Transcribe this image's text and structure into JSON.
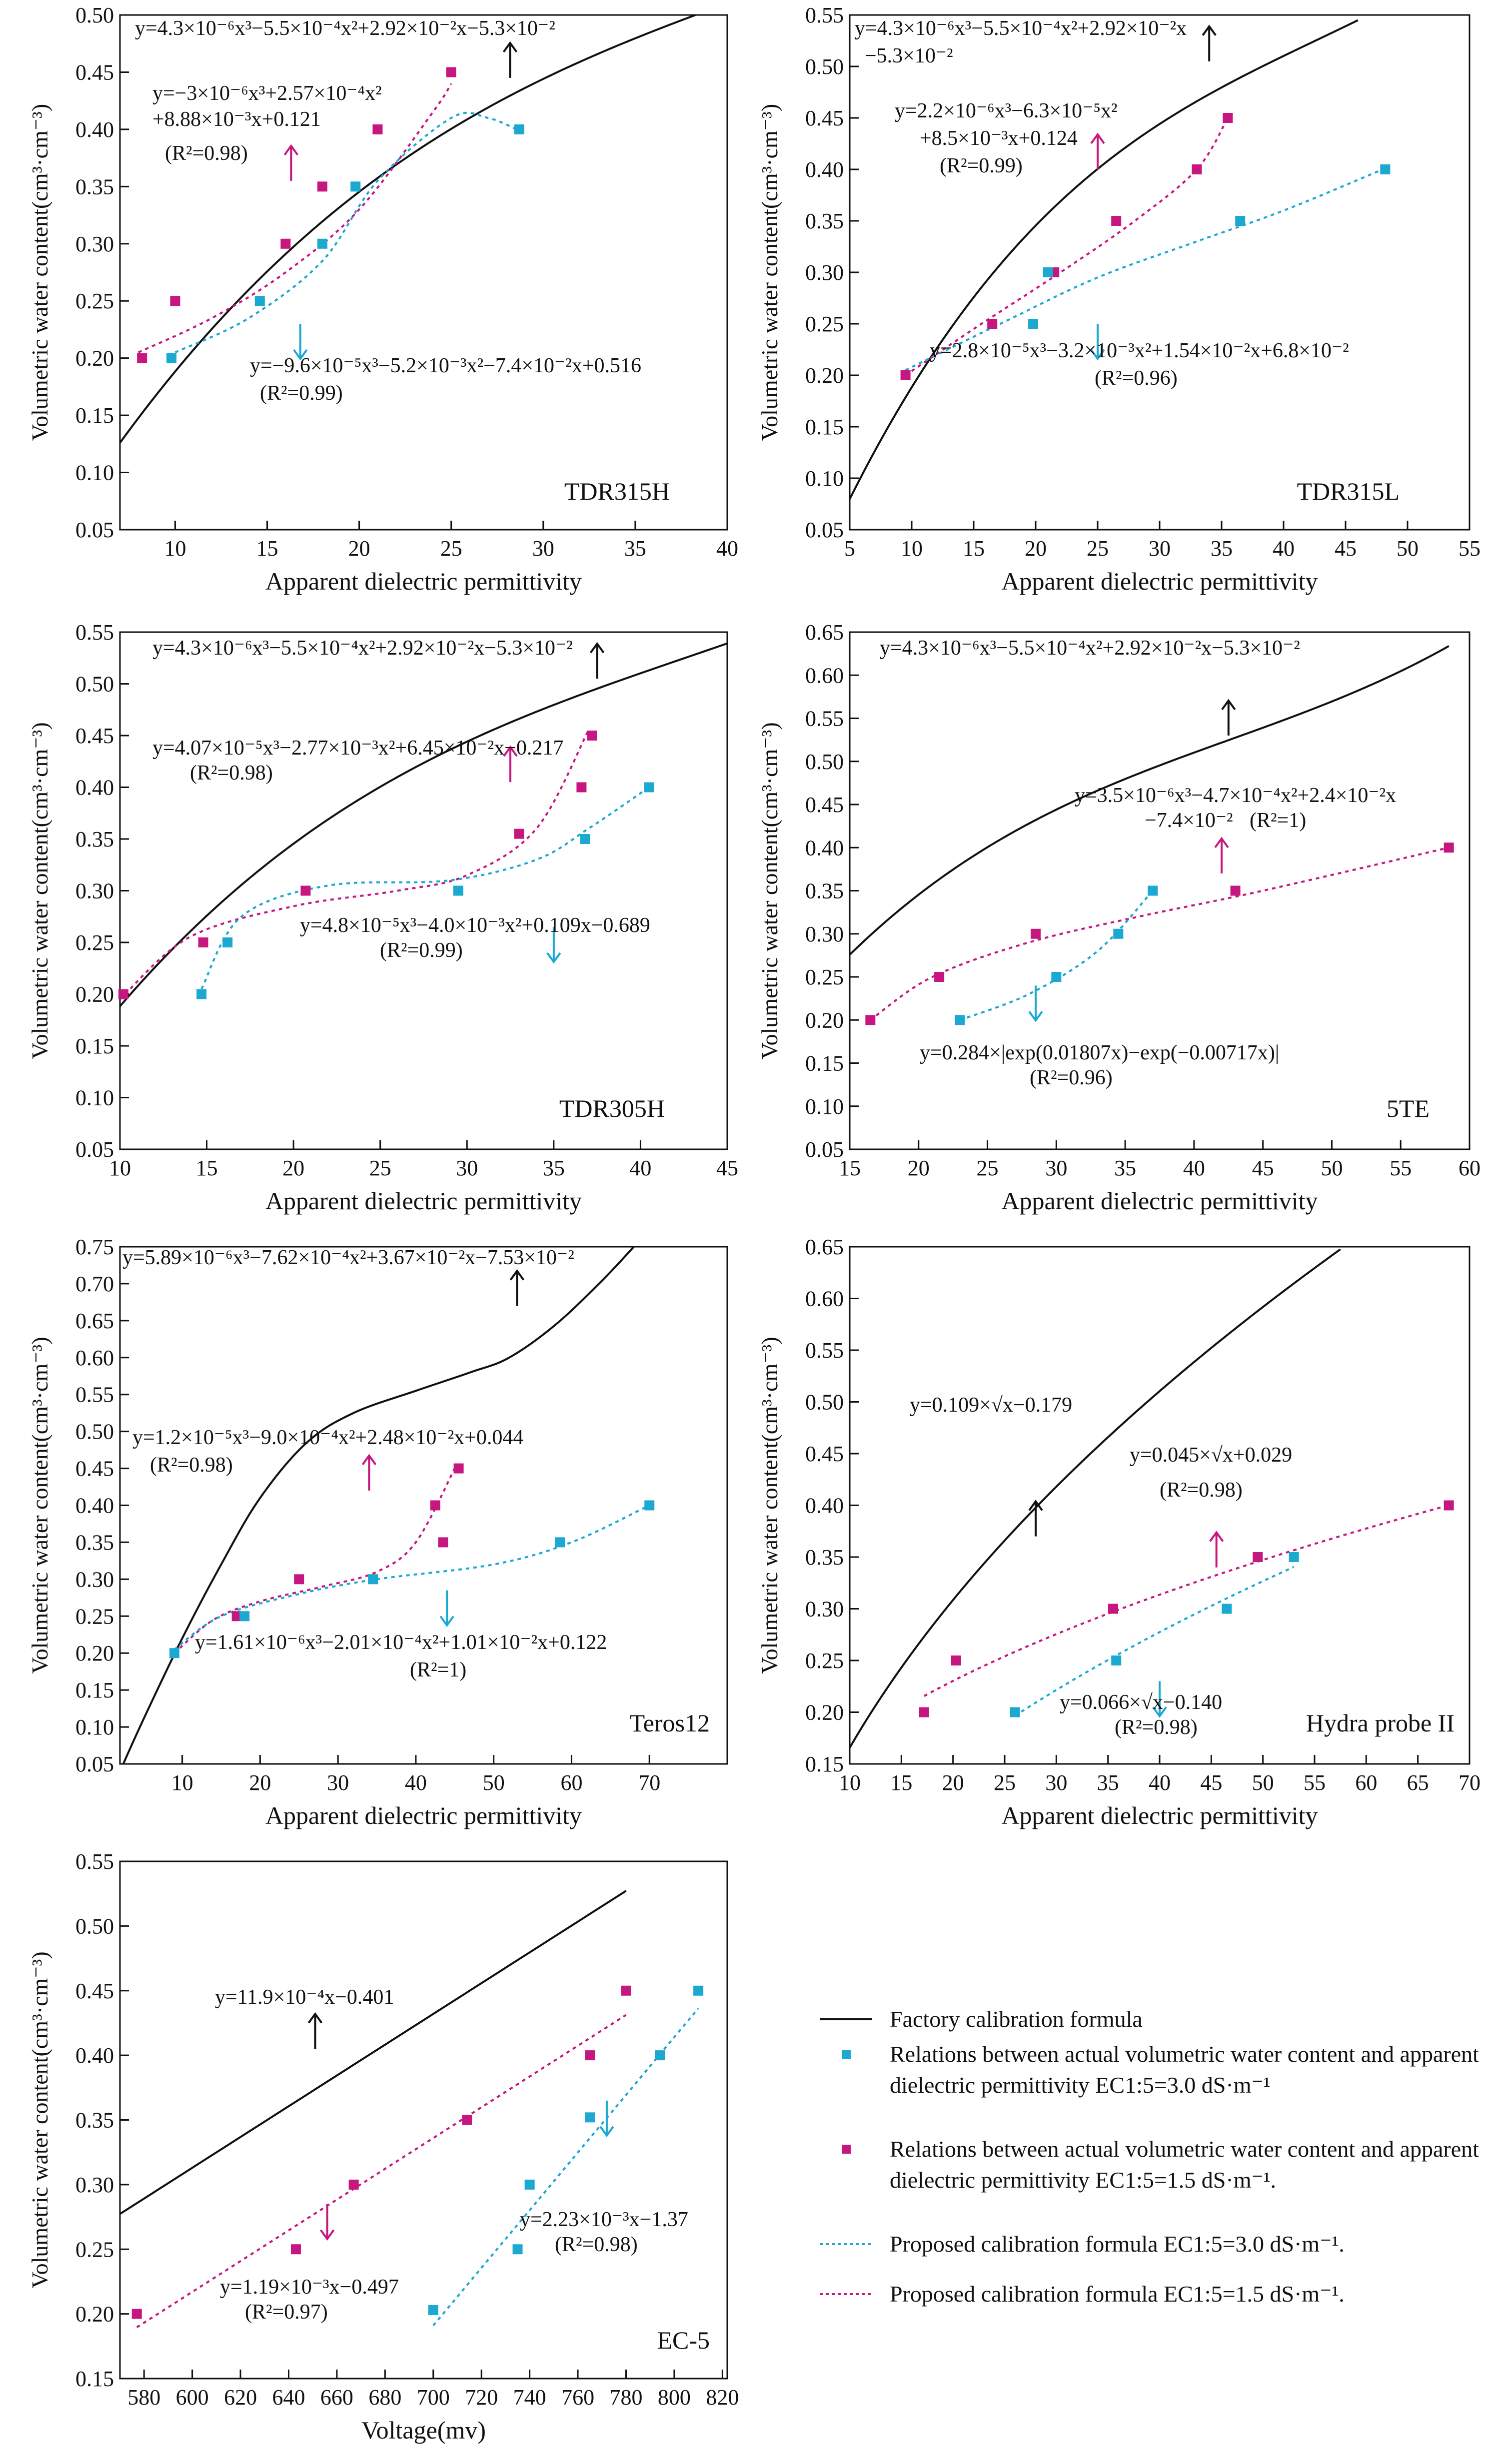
{
  "colors": {
    "factory": "#111111",
    "ec30": "#1ba8d1",
    "ec15": "#c6167f"
  },
  "legend": {
    "factory": "Factory calibration formula",
    "ec30_points": "Relations between actual volumetric water content and apparent dielectric permittivity EC1:5=3.0 dS·m⁻¹",
    "ec15_points": "Relations between actual volumetric water content and apparent dielectric permittivity EC1:5=1.5 dS·m⁻¹.",
    "ec30_formula": "Proposed calibration formula EC1:5=3.0 dS·m⁻¹.",
    "ec15_formula": "Proposed calibration formula EC1:5=1.5 dS·m⁻¹."
  },
  "chart_data": [
    {
      "id": "tdr315h",
      "type": "scatter",
      "title": "TDR315H",
      "xlabel": "Apparent dielectric permittivity",
      "ylabel": "Volumetric water content(cm³·cm⁻³)",
      "xlim": [
        7,
        40
      ],
      "ylim": [
        0.05,
        0.5
      ],
      "xticks": [
        "10",
        "15",
        "20",
        "25",
        "30",
        "35",
        "40"
      ],
      "yticks": [
        "0.05",
        "0.10",
        "0.15",
        "0.20",
        "0.25",
        "0.30",
        "0.35",
        "0.40",
        "0.45",
        "0.50"
      ],
      "series": [
        {
          "points": [
            [
              8.2,
              0.2
            ],
            [
              10,
              0.25
            ],
            [
              16,
              0.3
            ],
            [
              18,
              0.35
            ],
            [
              21,
              0.4
            ],
            [
              25,
              0.45
            ]
          ]
        },
        {
          "points": [
            [
              9.8,
              0.2
            ],
            [
              14.6,
              0.25
            ],
            [
              18,
              0.3
            ],
            [
              19.8,
              0.35
            ],
            [
              28.7,
              0.4
            ]
          ]
        }
      ],
      "annotations": [
        "y=4.3×10⁻⁶x³−5.5×10⁻⁴x²+2.92×10⁻²x−5.3×10⁻²",
        "y=−3×10⁻⁶x³+2.57×10⁻⁴x²",
        "+8.88×10⁻³x+0.121",
        "(R²=0.98)",
        "y=−9.6×10⁻⁵x³−5.2×10⁻³x²−7.4×10⁻²x+0.516",
        "(R²=0.99)"
      ]
    },
    {
      "id": "tdr315l",
      "type": "scatter",
      "title": "TDR315L",
      "xlabel": "Apparent dielectric permittivity",
      "ylabel": "Volumetric water content(cm³·cm⁻³)",
      "xlim": [
        5,
        55
      ],
      "ylim": [
        0.05,
        0.55
      ],
      "xticks": [
        "5",
        "10",
        "15",
        "20",
        "25",
        "30",
        "35",
        "40",
        "45",
        "50",
        "55"
      ],
      "yticks": [
        "0.05",
        "0.10",
        "0.15",
        "0.20",
        "0.25",
        "0.30",
        "0.35",
        "0.40",
        "0.45",
        "0.50",
        "0.55"
      ],
      "series": [
        {
          "points": [
            [
              9.5,
              0.2
            ],
            [
              16.5,
              0.25
            ],
            [
              21.5,
              0.3
            ],
            [
              26.5,
              0.35
            ],
            [
              33,
              0.4
            ],
            [
              35.5,
              0.45
            ]
          ]
        },
        {
          "points": [
            [
              19.8,
              0.25
            ],
            [
              21,
              0.3
            ],
            [
              36.5,
              0.35
            ],
            [
              48.2,
              0.4
            ]
          ]
        }
      ],
      "annotations": [
        "y=4.3×10⁻⁶x³−5.5×10⁻⁴x²+2.92×10⁻²x",
        "−5.3×10⁻²",
        "y=2.2×10⁻⁶x³−6.3×10⁻⁵x²",
        "+8.5×10⁻³x+0.124",
        "(R²=0.99)",
        "y=2.8×10⁻⁵x³−3.2×10⁻³x²+1.54×10⁻²x+6.8×10⁻²",
        "(R²=0.96)"
      ]
    },
    {
      "id": "tdr305h",
      "type": "scatter",
      "title": "TDR305H",
      "xlabel": "Apparent dielectric permittivity",
      "ylabel": "Volumetric water content(cm³·cm⁻³)",
      "xlim": [
        10,
        45
      ],
      "ylim": [
        0.05,
        0.55
      ],
      "xticks": [
        "10",
        "15",
        "20",
        "25",
        "30",
        "35",
        "40",
        "45"
      ],
      "yticks": [
        "0.05",
        "0.10",
        "0.15",
        "0.20",
        "0.25",
        "0.30",
        "0.35",
        "0.40",
        "0.45",
        "0.50",
        "0.55"
      ],
      "series": [
        {
          "points": [
            [
              10.2,
              0.2
            ],
            [
              14.8,
              0.25
            ],
            [
              20.7,
              0.3
            ],
            [
              33,
              0.355
            ],
            [
              36.6,
              0.4
            ],
            [
              37.2,
              0.45
            ]
          ]
        },
        {
          "points": [
            [
              14.7,
              0.2
            ],
            [
              16.2,
              0.25
            ],
            [
              29.5,
              0.3
            ],
            [
              36.8,
              0.35
            ],
            [
              40.5,
              0.4
            ]
          ]
        }
      ],
      "annotations": [
        "y=4.3×10⁻⁶x³−5.5×10⁻⁴x²+2.92×10⁻²x−5.3×10⁻²",
        "y=4.07×10⁻⁵x³−2.77×10⁻³x²+6.45×10⁻²x−0.217",
        "(R²=0.98)",
        "y=4.8×10⁻⁵x³−4.0×10⁻³x²+0.109x−0.689",
        "(R²=0.99)"
      ]
    },
    {
      "id": "5te",
      "type": "scatter",
      "title": "5TE",
      "xlabel": "Apparent dielectric permittivity",
      "ylabel": "Volumetric water content(cm³·cm⁻³)",
      "xlim": [
        15,
        60
      ],
      "ylim": [
        0.05,
        0.65
      ],
      "xticks": [
        "15",
        "20",
        "25",
        "30",
        "35",
        "40",
        "45",
        "50",
        "55",
        "60"
      ],
      "yticks": [
        "0.05",
        "0.10",
        "0.15",
        "0.20",
        "0.25",
        "0.30",
        "0.35",
        "0.40",
        "0.45",
        "0.50",
        "0.55",
        "0.60",
        "0.65"
      ],
      "series": [
        {
          "points": [
            [
              16.5,
              0.2
            ],
            [
              21.5,
              0.25
            ],
            [
              28.5,
              0.3
            ],
            [
              43,
              0.35
            ],
            [
              58.5,
              0.4
            ]
          ]
        },
        {
          "points": [
            [
              23,
              0.2
            ],
            [
              30,
              0.25
            ],
            [
              34.5,
              0.3
            ],
            [
              37,
              0.35
            ]
          ]
        }
      ],
      "annotations": [
        "y=4.3×10⁻⁶x³−5.5×10⁻⁴x²+2.92×10⁻²x−5.3×10⁻²",
        "y=3.5×10⁻⁶x³−4.7×10⁻⁴x²+2.4×10⁻²x",
        "−7.4×10⁻²",
        "(R²=1)",
        "y=0.284×|exp(0.01807x)−exp(−0.00717x)|",
        "(R²=0.96)"
      ]
    },
    {
      "id": "teros12",
      "type": "scatter",
      "title": "Teros12",
      "xlabel": "Apparent dielectric permittivity",
      "ylabel": "Volumetric water content(cm³·cm⁻³)",
      "xlim": [
        2,
        80
      ],
      "ylim": [
        0.05,
        0.75
      ],
      "xticks": [
        "10",
        "20",
        "30",
        "40",
        "50",
        "60",
        "70"
      ],
      "yticks": [
        "0.05",
        "0.10",
        "0.15",
        "0.20",
        "0.25",
        "0.30",
        "0.35",
        "0.40",
        "0.45",
        "0.50",
        "0.55",
        "0.60",
        "0.65",
        "0.70",
        "0.75"
      ],
      "series": [
        {
          "points": [
            [
              17,
              0.25
            ],
            [
              25,
              0.3
            ],
            [
              42.5,
              0.4
            ],
            [
              43.5,
              0.35
            ],
            [
              45.5,
              0.45
            ]
          ]
        },
        {
          "points": [
            [
              9,
              0.2
            ],
            [
              18,
              0.25
            ],
            [
              34.5,
              0.3
            ],
            [
              58.5,
              0.35
            ],
            [
              70,
              0.4
            ]
          ]
        }
      ],
      "annotations": [
        "y=5.89×10⁻⁶x³−7.62×10⁻⁴x²+3.67×10⁻²x−7.53×10⁻²",
        "y=1.2×10⁻⁵x³−9.0×10⁻⁴x²+2.48×10⁻²x+0.044",
        "(R²=0.98)",
        "y=1.61×10⁻⁶x³−2.01×10⁻⁴x²+1.01×10⁻²x+0.122",
        "(R²=1)"
      ]
    },
    {
      "id": "hydra",
      "type": "scatter",
      "title": "Hydra probe II",
      "xlabel": "Apparent dielectric permittivity",
      "ylabel": "Volumetric water content(cm³·cm⁻³)",
      "xlim": [
        10,
        70
      ],
      "ylim": [
        0.15,
        0.65
      ],
      "xticks": [
        "10",
        "15",
        "20",
        "25",
        "30",
        "35",
        "40",
        "45",
        "50",
        "55",
        "60",
        "65",
        "70"
      ],
      "yticks": [
        "0.15",
        "0.20",
        "0.25",
        "0.30",
        "0.35",
        "0.40",
        "0.45",
        "0.50",
        "0.55",
        "0.60",
        "0.65"
      ],
      "series": [
        {
          "points": [
            [
              17.2,
              0.2
            ],
            [
              20.3,
              0.25
            ],
            [
              35.5,
              0.3
            ],
            [
              49.5,
              0.35
            ],
            [
              68,
              0.4
            ]
          ]
        },
        {
          "points": [
            [
              26,
              0.2
            ],
            [
              35.8,
              0.25
            ],
            [
              46.5,
              0.3
            ],
            [
              53,
              0.35
            ]
          ]
        }
      ],
      "annotations": [
        "y=0.109×√x−0.179",
        "y=0.045×√x+0.029",
        "(R²=0.98)",
        "y=0.066×√x−0.140",
        "(R²=0.98)"
      ]
    },
    {
      "id": "ec5",
      "type": "scatter",
      "title": "EC-5",
      "xlabel": "Voltage(mv)",
      "ylabel": "Volumetric water content(cm³·cm⁻³)",
      "xlim": [
        570,
        822
      ],
      "ylim": [
        0.15,
        0.55
      ],
      "xticks": [
        "580",
        "600",
        "620",
        "640",
        "660",
        "680",
        "700",
        "720",
        "740",
        "760",
        "780",
        "800",
        "820"
      ],
      "yticks": [
        "0.15",
        "0.20",
        "0.25",
        "0.30",
        "0.35",
        "0.40",
        "0.45",
        "0.50",
        "0.55"
      ],
      "series": [
        {
          "points": [
            [
              577,
              0.2
            ],
            [
              643,
              0.25
            ],
            [
              667,
              0.3
            ],
            [
              714,
              0.35
            ],
            [
              765,
              0.4
            ],
            [
              780,
              0.45
            ]
          ]
        },
        {
          "points": [
            [
              700,
              0.203
            ],
            [
              735,
              0.25
            ],
            [
              740,
              0.3
            ],
            [
              765,
              0.352
            ],
            [
              794,
              0.4
            ],
            [
              810,
              0.45
            ]
          ]
        }
      ],
      "annotations": [
        "y=11.9×10⁻⁴x−0.401",
        "y=1.19×10⁻³x−0.497",
        "(R²=0.97)",
        "y=2.23×10⁻³x−1.37",
        "(R²=0.98)"
      ]
    }
  ]
}
